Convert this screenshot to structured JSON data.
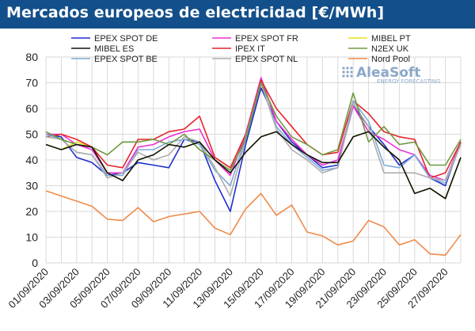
{
  "title": "Mercados europeos de electricidad [€/MWh]",
  "watermark": {
    "brand": "AleaSoft",
    "tagline": "ENERGY FORECASTING"
  },
  "chart_data": {
    "type": "line",
    "ylim": [
      0,
      80
    ],
    "yticks": [
      0,
      10,
      20,
      30,
      40,
      50,
      60,
      70,
      80
    ],
    "grid": true,
    "legend_position": "top",
    "x": [
      "01/09/2020",
      "02/09/2020",
      "03/09/2020",
      "04/09/2020",
      "05/09/2020",
      "06/09/2020",
      "07/09/2020",
      "08/09/2020",
      "09/09/2020",
      "10/09/2020",
      "11/09/2020",
      "12/09/2020",
      "13/09/2020",
      "14/09/2020",
      "15/09/2020",
      "16/09/2020",
      "17/09/2020",
      "18/09/2020",
      "19/09/2020",
      "20/09/2020",
      "21/09/2020",
      "22/09/2020",
      "23/09/2020",
      "24/09/2020",
      "25/09/2020",
      "26/09/2020",
      "27/09/2020",
      "28/09/2020"
    ],
    "xtick_labels": [
      "01/09/2020",
      "",
      "03/09/2020",
      "",
      "05/09/2020",
      "",
      "07/09/2020",
      "",
      "09/09/2020",
      "",
      "11/09/2020",
      "",
      "13/09/2020",
      "",
      "15/09/2020",
      "",
      "17/09/2020",
      "",
      "19/09/2020",
      "",
      "21/09/2020",
      "",
      "23/09/2020",
      "",
      "25/09/2020",
      "",
      "27/09/2020",
      ""
    ],
    "series": [
      {
        "name": "EPEX SPOT DE",
        "color": "#1f2fcf",
        "values": [
          50,
          49,
          41,
          39,
          34,
          35,
          39,
          38,
          37,
          48,
          47,
          32,
          20,
          46,
          68,
          55,
          47,
          42,
          37,
          38,
          61,
          53,
          46,
          38,
          42,
          33,
          30,
          47
        ]
      },
      {
        "name": "EPEX SPOT FR",
        "color": "#ee2fd6",
        "values": [
          50,
          50,
          46,
          44,
          35,
          35,
          45,
          46,
          49,
          51,
          52,
          40,
          34,
          50,
          72,
          55,
          48,
          42,
          38,
          40,
          61,
          51,
          48,
          44,
          42,
          34,
          32,
          47
        ]
      },
      {
        "name": "MIBEL PT",
        "color": "#e8e21a",
        "values": [
          46,
          44,
          47,
          45,
          35,
          32,
          40,
          42,
          46,
          45,
          47,
          40,
          35,
          43,
          49,
          51,
          46,
          42,
          39,
          39,
          49,
          51,
          45,
          40,
          27,
          29,
          25,
          41
        ]
      },
      {
        "name": "IPEX IT",
        "color": "#e6232a",
        "values": [
          49,
          50,
          48,
          45,
          38,
          37,
          48,
          48,
          51,
          52,
          57,
          41,
          37,
          50,
          71,
          60,
          53,
          46,
          42,
          43,
          63,
          58,
          51,
          49,
          48,
          33,
          35,
          47
        ]
      },
      {
        "name": "EPEX SPOT BE",
        "color": "#7eaad8",
        "values": [
          50,
          48,
          43,
          42,
          34,
          34,
          44,
          44,
          47,
          48,
          46,
          36,
          30,
          49,
          70,
          53,
          46,
          41,
          36,
          37,
          63,
          55,
          38,
          37,
          42,
          33,
          31,
          46
        ]
      },
      {
        "name": "EPEX SPOT NL",
        "color": "#adadad",
        "values": [
          49,
          48,
          43,
          42,
          33,
          35,
          43,
          40,
          42,
          49,
          47,
          37,
          26,
          48,
          70,
          52,
          44,
          40,
          35,
          37,
          62,
          53,
          35,
          35,
          35,
          33,
          32,
          46
        ]
      },
      {
        "name": "N2EX UK",
        "color": "#6f9a40",
        "values": [
          51,
          48,
          46,
          45,
          42,
          47,
          47,
          48,
          46,
          50,
          44,
          40,
          36,
          48,
          70,
          57,
          49,
          46,
          42,
          44,
          66,
          47,
          53,
          46,
          47,
          38,
          38,
          48
        ]
      },
      {
        "name": "MIBEL ES",
        "color": "#111111",
        "values": [
          46,
          44,
          46,
          45,
          35,
          32,
          40,
          42,
          46,
          45,
          47,
          40,
          35,
          43,
          49,
          51,
          46,
          42,
          39,
          39,
          49,
          51,
          45,
          40,
          27,
          29,
          25,
          41
        ]
      },
      {
        "name": "Nord Pool",
        "color": "#f08a4b",
        "values": [
          28,
          26,
          24,
          22,
          17,
          16.5,
          21.5,
          16,
          18,
          19,
          20,
          13.5,
          11,
          21,
          27,
          18.5,
          22.5,
          12,
          10.5,
          7,
          8.5,
          16.5,
          14,
          7,
          9,
          3.5,
          3,
          11
        ]
      }
    ],
    "legend_order": [
      "EPEX SPOT DE",
      "EPEX SPOT FR",
      "MIBEL PT",
      "MIBEL ES",
      "IPEX IT",
      "N2EX UK",
      "EPEX SPOT BE",
      "EPEX SPOT NL",
      "Nord Pool"
    ]
  }
}
